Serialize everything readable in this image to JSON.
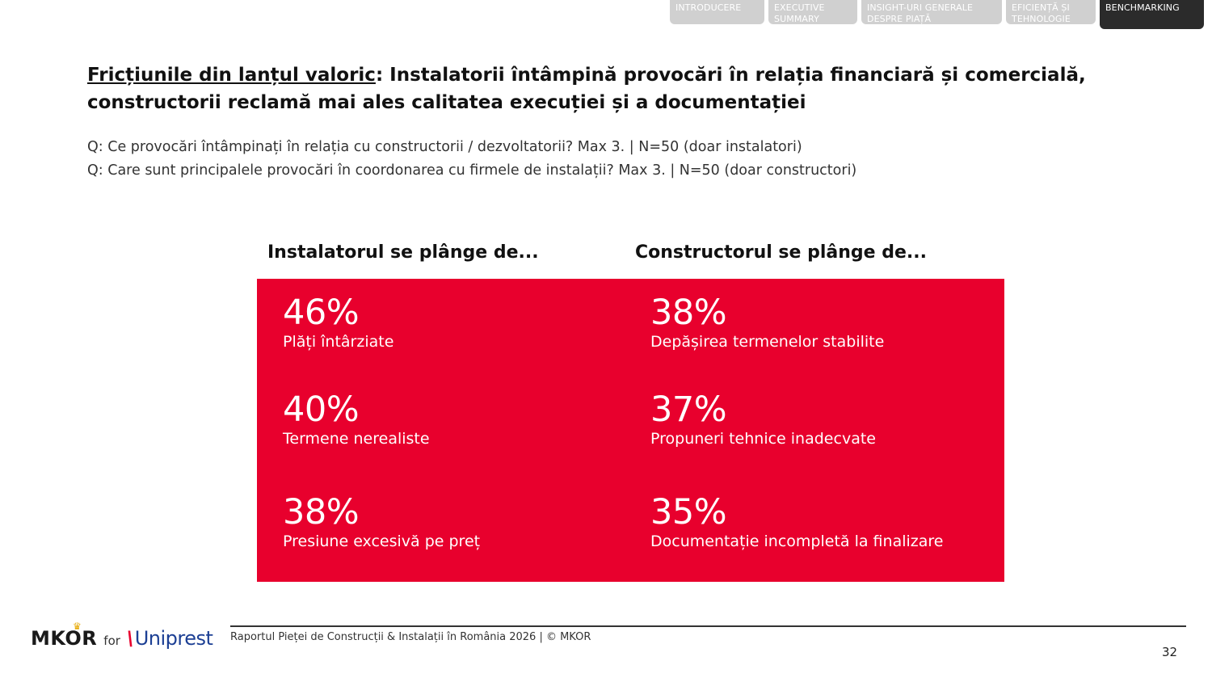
{
  "nav": {
    "tabs": [
      {
        "label": "INTRODUCERE",
        "active": false
      },
      {
        "label": "EXECUTIVE SUMMARY",
        "active": false
      },
      {
        "label": "INSIGHT-URI GENERALE DESPRE PIAȚĂ",
        "active": false
      },
      {
        "label": "EFICIENȚĂ ȘI TEHNOLOGIE",
        "active": false
      },
      {
        "label": "BENCHMARKING",
        "active": true
      }
    ]
  },
  "header": {
    "title_underlined": "Fricțiunile din lanțul valoric",
    "title_rest": ": Instalatorii întâmpină provocări în relația financiară și comercială, constructorii reclamă mai ales calitatea execuției și a documentației",
    "question_1": "Q: Ce provocări întâmpinați în relația cu constructorii / dezvoltatorii? Max 3. | N=50 (doar instalatori)",
    "question_2": "Q: Care sunt principalele provocări în coordonarea cu firmele de instalații? Max 3. | N=50 (doar constructori)"
  },
  "columns": {
    "left_heading": "Instalatorul se plânge de...",
    "right_heading": "Constructorul se plânge de...",
    "left": [
      {
        "pct": "46%",
        "label": "Plăți întârziate"
      },
      {
        "pct": "40%",
        "label": "Termene nerealiste"
      },
      {
        "pct": "38%",
        "label": "Presiune excesivă pe preț"
      }
    ],
    "right": [
      {
        "pct": "38%",
        "label": "Depășirea termenelor stabilite"
      },
      {
        "pct": "37%",
        "label": "Propuneri tehnice inadecvate"
      },
      {
        "pct": "35%",
        "label": "Documentație incompletă la finalizare"
      }
    ]
  },
  "colors": {
    "accent_red": "#e8002d",
    "nav_inactive": "#d0d0d0",
    "nav_active": "#2b2b2b"
  },
  "footer": {
    "text": "Raportul Pieței de Construcții & Instalații în România 2026 | © MKOR",
    "page_number": "32",
    "logo_mkor": "MKOR",
    "logo_for": "for",
    "logo_uniprest": "Uniprest"
  }
}
